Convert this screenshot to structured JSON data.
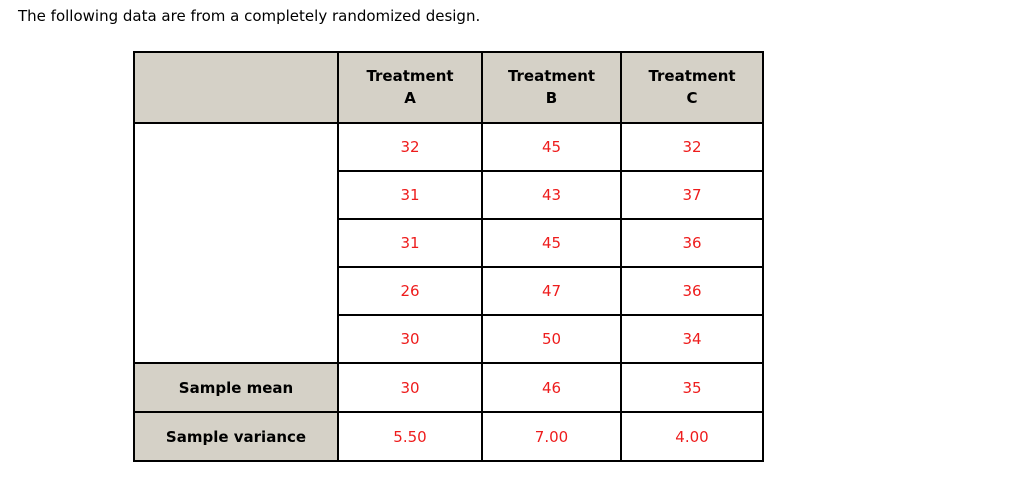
{
  "intro": {
    "text": "The following data are from a completely randomized design."
  },
  "table": {
    "columns": [
      {
        "line1": "Treatment",
        "line2": "A"
      },
      {
        "line1": "Treatment",
        "line2": "B"
      },
      {
        "line1": "Treatment",
        "line2": "C"
      }
    ],
    "observations": [
      [
        "32",
        "45",
        "32"
      ],
      [
        "31",
        "43",
        "37"
      ],
      [
        "31",
        "45",
        "36"
      ],
      [
        "26",
        "47",
        "36"
      ],
      [
        "30",
        "50",
        "34"
      ]
    ],
    "summary": [
      {
        "label": "Sample mean",
        "values": [
          "30",
          "46",
          "35"
        ]
      },
      {
        "label": "Sample variance",
        "values": [
          "5.50",
          "7.00",
          "4.00"
        ]
      }
    ]
  },
  "colors": {
    "header_bg": "#d5d1c7",
    "value_text": "#ee1c1c",
    "border": "#000000",
    "page_bg": "#ffffff"
  }
}
